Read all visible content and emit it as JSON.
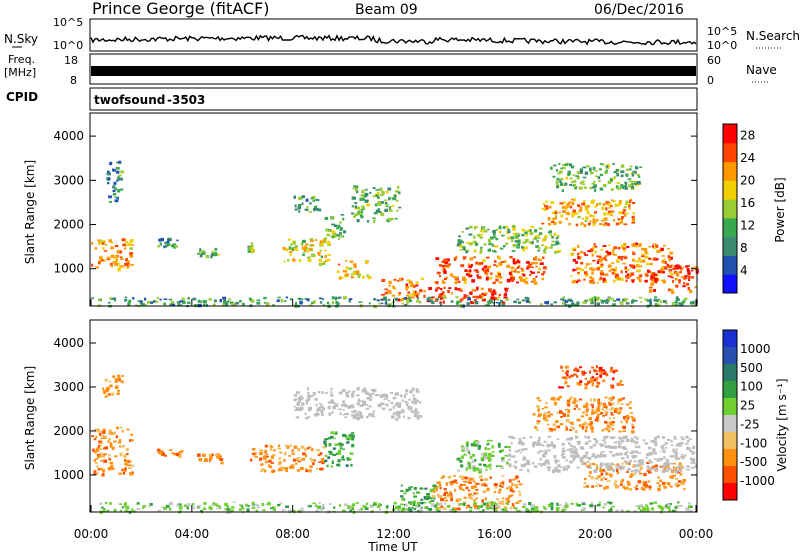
{
  "header": {
    "station": "Prince George (fitACF)",
    "beam": "Beam 09",
    "date": "06/Dec/2016"
  },
  "noise_panel": {
    "left_label": "N.Sky",
    "left_ticks": [
      "10^5",
      "10^0"
    ],
    "right_ticks": [
      "10^5",
      "10^0"
    ],
    "right_label": "N.Search"
  },
  "freq_panel": {
    "left_label_1": "Freq.",
    "left_label_2": "[MHz]",
    "left_ticks": [
      "18",
      "8"
    ],
    "right_ticks": [
      "60",
      "0"
    ],
    "right_label": "Nave"
  },
  "cpid_panel": {
    "label": "CPID",
    "program": "twofsound",
    "id": "-3503"
  },
  "colors": {
    "background": "#ffffff",
    "ground_scatter": "#bebebe",
    "power_scale": [
      "#1010ff",
      "#2050b0",
      "#3a8a70",
      "#38a850",
      "#9acd32",
      "#f0d000",
      "#ff9900",
      "#ff4500",
      "#ff0000"
    ],
    "velocity_scale": [
      "#ff0000",
      "#ff5000",
      "#ff9010",
      "#f0c060",
      "#c8c8c8",
      "#6fd030",
      "#30a040",
      "#2a7a6a",
      "#2850b0",
      "#1a30d0"
    ]
  },
  "chart_data": [
    {
      "type": "heatmap",
      "title": "",
      "xlabel": "",
      "ylabel": "Slant Range [km]",
      "xlim": [
        "00:00",
        "00:00"
      ],
      "ylim": [
        180,
        4500
      ],
      "x_ticks": [
        "00:00",
        "04:00",
        "08:00",
        "12:00",
        "16:00",
        "20:00",
        "00:00"
      ],
      "y_ticks": [
        "1000",
        "2000",
        "3000",
        "4000"
      ],
      "y_tick_values": [
        1000,
        2000,
        3000,
        4000
      ],
      "colorbar": {
        "label": "Power [dB]",
        "ticks": [
          "4",
          "8",
          "12",
          "16",
          "20",
          "24",
          "28"
        ],
        "range": [
          0,
          30
        ]
      },
      "regions": [
        {
          "t": [
            0.0,
            1.6
          ],
          "r": [
            1000,
            1700
          ],
          "value": 22
        },
        {
          "t": [
            0.6,
            1.2
          ],
          "r": [
            2500,
            3450
          ],
          "value": 8
        },
        {
          "t": [
            2.6,
            3.4
          ],
          "r": [
            1500,
            1700
          ],
          "value": 9
        },
        {
          "t": [
            4.2,
            5.0
          ],
          "r": [
            1300,
            1500
          ],
          "value": 12
        },
        {
          "t": [
            6.2,
            6.4
          ],
          "r": [
            1400,
            1600
          ],
          "value": 14
        },
        {
          "t": [
            7.6,
            9.4
          ],
          "r": [
            1100,
            1700
          ],
          "value": 18
        },
        {
          "t": [
            8.0,
            9.0
          ],
          "r": [
            2300,
            2700
          ],
          "value": 10
        },
        {
          "t": [
            9.2,
            10.0
          ],
          "r": [
            1700,
            2300
          ],
          "value": 12
        },
        {
          "t": [
            9.7,
            11.0
          ],
          "r": [
            800,
            1200
          ],
          "value": 20
        },
        {
          "t": [
            10.3,
            12.2
          ],
          "r": [
            2100,
            2900
          ],
          "value": 12
        },
        {
          "t": [
            11.5,
            13.2
          ],
          "r": [
            300,
            800
          ],
          "value": 24
        },
        {
          "t": [
            13.3,
            16.5
          ],
          "r": [
            250,
            600
          ],
          "value": 29
        },
        {
          "t": [
            13.6,
            18.0
          ],
          "r": [
            700,
            1300
          ],
          "value": 26
        },
        {
          "t": [
            14.5,
            18.5
          ],
          "r": [
            1400,
            2000
          ],
          "value": 14
        },
        {
          "t": [
            17.8,
            21.5
          ],
          "r": [
            2000,
            2600
          ],
          "value": 22
        },
        {
          "t": [
            18.2,
            21.8
          ],
          "r": [
            2800,
            3400
          ],
          "value": 12
        },
        {
          "t": [
            19.0,
            23.0
          ],
          "r": [
            700,
            1600
          ],
          "value": 24
        },
        {
          "t": [
            22.0,
            24.0
          ],
          "r": [
            500,
            1100
          ],
          "value": 27
        },
        {
          "t": [
            0.0,
            24.0
          ],
          "r": [
            180,
            380
          ],
          "value": 10
        }
      ]
    },
    {
      "type": "heatmap",
      "title": "",
      "xlabel": "Time UT",
      "ylabel": "Slant Range [km]",
      "xlim": [
        "00:00",
        "00:00"
      ],
      "ylim": [
        180,
        4500
      ],
      "x_ticks": [
        "00:00",
        "04:00",
        "08:00",
        "12:00",
        "16:00",
        "20:00",
        "00:00"
      ],
      "y_ticks": [
        "1000",
        "2000",
        "3000",
        "4000"
      ],
      "y_tick_values": [
        1000,
        2000,
        3000,
        4000
      ],
      "colorbar": {
        "label": "Velocity [m s⁻¹]",
        "ticks": [
          "1000",
          "500",
          "100",
          "25",
          "-25",
          "-100",
          "-500",
          "-1000"
        ]
      },
      "regions": [
        {
          "t": [
            0.0,
            1.6
          ],
          "r": [
            1000,
            2100
          ],
          "value": -300
        },
        {
          "t": [
            0.4,
            1.2
          ],
          "r": [
            2800,
            3300
          ],
          "value": -400
        },
        {
          "t": [
            2.6,
            3.6
          ],
          "r": [
            1450,
            1600
          ],
          "value": -200
        },
        {
          "t": [
            4.2,
            5.2
          ],
          "r": [
            1300,
            1500
          ],
          "value": -250
        },
        {
          "t": [
            6.3,
            9.2
          ],
          "r": [
            1100,
            1700
          ],
          "value": -150
        },
        {
          "t": [
            9.2,
            10.4
          ],
          "r": [
            1200,
            2000
          ],
          "value": 300
        },
        {
          "t": [
            12.2,
            13.6
          ],
          "r": [
            200,
            800
          ],
          "value": 400
        },
        {
          "t": [
            13.5,
            17.0
          ],
          "r": [
            250,
            1000
          ],
          "value": -150
        },
        {
          "t": [
            14.5,
            16.5
          ],
          "r": [
            1100,
            1800
          ],
          "value": 60
        },
        {
          "t": [
            17.5,
            21.5
          ],
          "r": [
            2000,
            2800
          ],
          "value": -400
        },
        {
          "t": [
            18.5,
            21.0
          ],
          "r": [
            3000,
            3500
          ],
          "value": -500
        },
        {
          "t": [
            19.5,
            23.5
          ],
          "r": [
            700,
            1300
          ],
          "value": -200
        },
        {
          "t": [
            8.0,
            13.0
          ],
          "r": [
            2300,
            3000
          ],
          "value": 0,
          "ground_scatter": true
        },
        {
          "t": [
            16.5,
            24.0
          ],
          "r": [
            1100,
            1900
          ],
          "value": 0,
          "ground_scatter": true
        },
        {
          "t": [
            0.0,
            24.0
          ],
          "r": [
            180,
            400
          ],
          "value": 50
        }
      ]
    }
  ]
}
